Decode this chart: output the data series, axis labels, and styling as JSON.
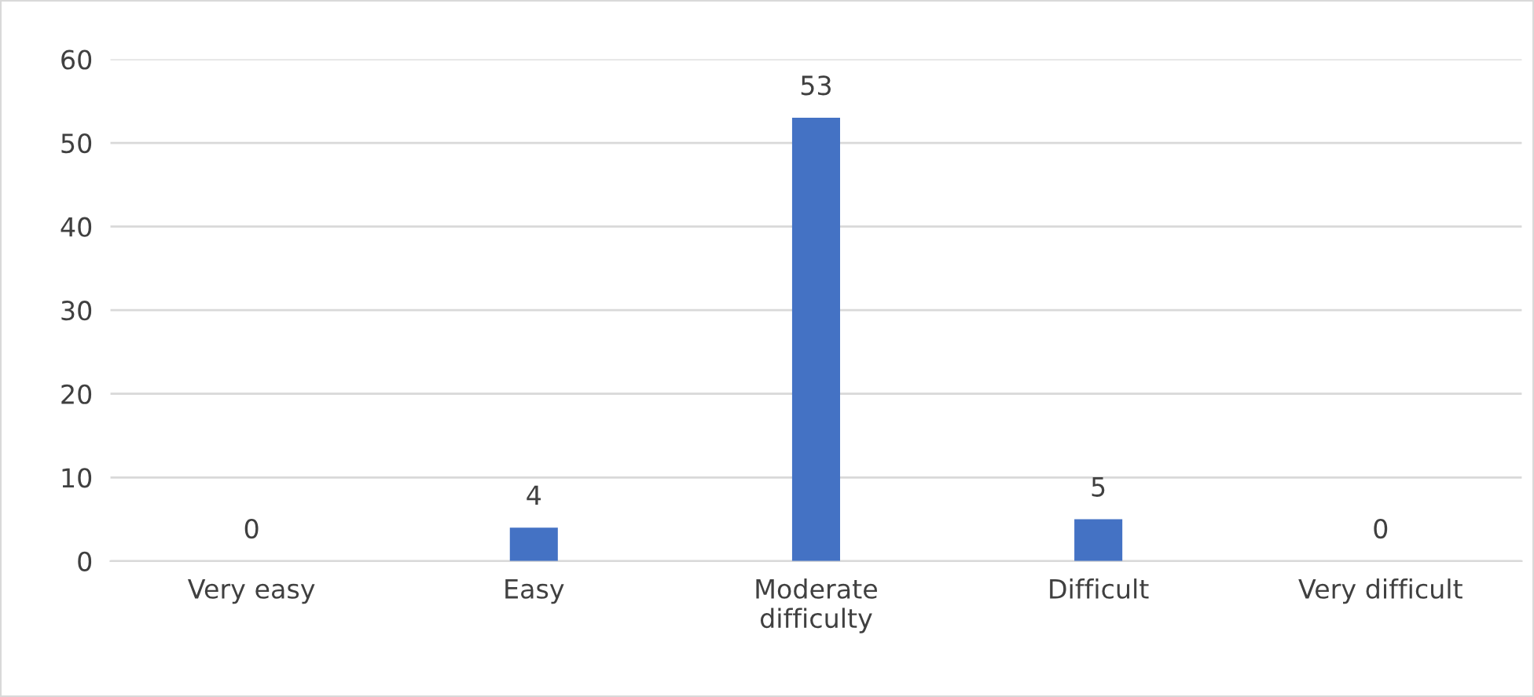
{
  "chart_data": {
    "type": "bar",
    "categories": [
      "Very easy",
      "Easy",
      "Moderate\ndifficulty",
      "Difficult",
      "Very difficult"
    ],
    "values": [
      0,
      4,
      53,
      5,
      0
    ],
    "color": "#4472c4",
    "ylim": [
      0,
      60
    ],
    "yticks": [
      0,
      10,
      20,
      30,
      40,
      50,
      60
    ],
    "grid": "y",
    "data_labels": true
  }
}
